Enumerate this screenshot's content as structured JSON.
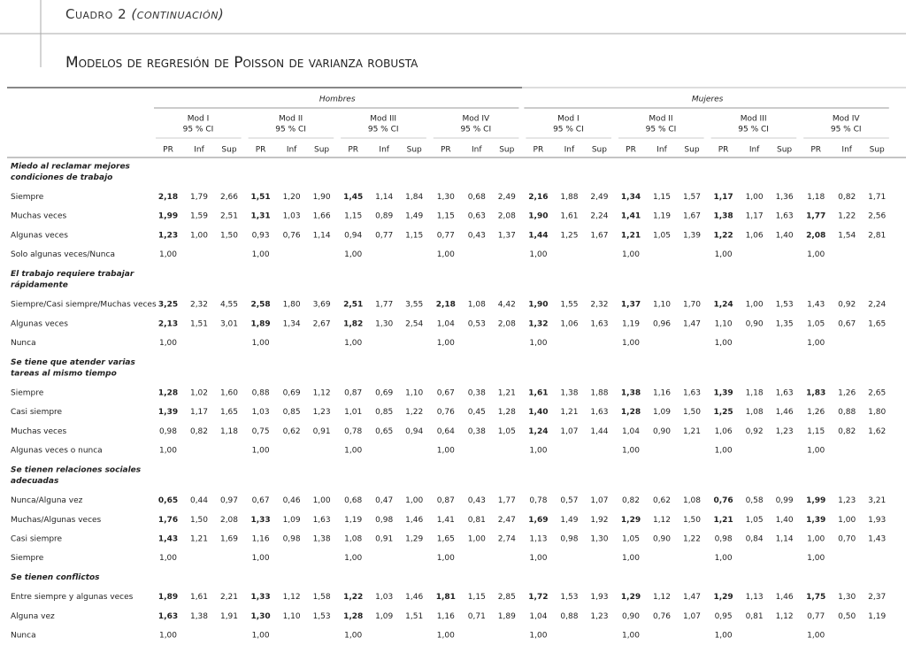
{
  "header": {
    "title": "Cuadro 2",
    "title_note": "(continuación)",
    "subtitle": "Modelos de regresión de Poisson de varianza robusta"
  },
  "table": {
    "groups": [
      "Hombres",
      "Mujeres"
    ],
    "models": [
      {
        "name": "Mod I",
        "ci": "95 % CI"
      },
      {
        "name": "Mod II",
        "ci": "95 % CI"
      },
      {
        "name": "Mod III",
        "ci": "95 % CI"
      },
      {
        "name": "Mod IV",
        "ci": "95 % CI"
      }
    ],
    "subheads": [
      "PR",
      "Inf",
      "Sup"
    ],
    "sections": [
      {
        "heading": [
          "Miedo al reclamar mejores",
          "condiciones de trabajo"
        ],
        "rows": [
          {
            "label": "Siempre",
            "cells": [
              "2,18",
              "1,79",
              "2,66",
              "1,51",
              "1,20",
              "1,90",
              "1,45",
              "1,14",
              "1,84",
              "1,30",
              "0,68",
              "2,49",
              "2,16",
              "1,88",
              "2,49",
              "1,34",
              "1,15",
              "1,57",
              "1,17",
              "1,00",
              "1,36",
              "1,18",
              "0,82",
              "1,71"
            ],
            "bold": [
              0,
              3,
              6,
              12,
              15,
              18
            ]
          },
          {
            "label": "Muchas veces",
            "cells": [
              "1,99",
              "1,59",
              "2,51",
              "1,31",
              "1,03",
              "1,66",
              "1,15",
              "0,89",
              "1,49",
              "1,15",
              "0,63",
              "2,08",
              "1,90",
              "1,61",
              "2,24",
              "1,41",
              "1,19",
              "1,67",
              "1,38",
              "1,17",
              "1,63",
              "1,77",
              "1,22",
              "2,56"
            ],
            "bold": [
              0,
              3,
              12,
              15,
              18,
              21
            ]
          },
          {
            "label": "Algunas veces",
            "cells": [
              "1,23",
              "1,00",
              "1,50",
              "0,93",
              "0,76",
              "1,14",
              "0,94",
              "0,77",
              "1,15",
              "0,77",
              "0,43",
              "1,37",
              "1,44",
              "1,25",
              "1,67",
              "1,21",
              "1,05",
              "1,39",
              "1,22",
              "1,06",
              "1,40",
              "2,08",
              "1,54",
              "2,81"
            ],
            "bold": [
              0,
              12,
              15,
              18,
              21
            ]
          },
          {
            "label": "Solo algunas veces/Nunca",
            "cells": [
              "1,00",
              null,
              null,
              "1,00",
              null,
              null,
              "1,00",
              null,
              null,
              "1,00",
              null,
              null,
              "1,00",
              null,
              null,
              "1,00",
              null,
              null,
              "1,00",
              null,
              null,
              "1,00",
              null,
              null
            ],
            "bold": []
          }
        ]
      },
      {
        "heading": [
          "El trabajo requiere trabajar",
          "rápidamente"
        ],
        "rows": [
          {
            "label": "Siempre/Casi siempre/Muchas veces",
            "cells": [
              "3,25",
              "2,32",
              "4,55",
              "2,58",
              "1,80",
              "3,69",
              "2,51",
              "1,77",
              "3,55",
              "2,18",
              "1,08",
              "4,42",
              "1,90",
              "1,55",
              "2,32",
              "1,37",
              "1,10",
              "1,70",
              "1,24",
              "1,00",
              "1,53",
              "1,43",
              "0,92",
              "2,24"
            ],
            "bold": [
              0,
              3,
              6,
              9,
              12,
              15,
              18
            ]
          },
          {
            "label": "Algunas veces",
            "cells": [
              "2,13",
              "1,51",
              "3,01",
              "1,89",
              "1,34",
              "2,67",
              "1,82",
              "1,30",
              "2,54",
              "1,04",
              "0,53",
              "2,08",
              "1,32",
              "1,06",
              "1,63",
              "1,19",
              "0,96",
              "1,47",
              "1,10",
              "0,90",
              "1,35",
              "1,05",
              "0,67",
              "1,65"
            ],
            "bold": [
              0,
              3,
              6,
              12
            ]
          },
          {
            "label": "Nunca",
            "cells": [
              "1,00",
              null,
              null,
              "1,00",
              null,
              null,
              "1,00",
              null,
              null,
              "1,00",
              null,
              null,
              "1,00",
              null,
              null,
              "1,00",
              null,
              null,
              "1,00",
              null,
              null,
              "1,00",
              null,
              null
            ],
            "bold": []
          }
        ]
      },
      {
        "heading": [
          "Se tiene que atender varias",
          "tareas al mismo tiempo"
        ],
        "rows": [
          {
            "label": "Siempre",
            "cells": [
              "1,28",
              "1,02",
              "1,60",
              "0,88",
              "0,69",
              "1,12",
              "0,87",
              "0,69",
              "1,10",
              "0,67",
              "0,38",
              "1,21",
              "1,61",
              "1,38",
              "1,88",
              "1,38",
              "1,16",
              "1,63",
              "1,39",
              "1,18",
              "1,63",
              "1,83",
              "1,26",
              "2,65"
            ],
            "bold": [
              0,
              12,
              15,
              18,
              21
            ]
          },
          {
            "label": "Casi siempre",
            "cells": [
              "1,39",
              "1,17",
              "1,65",
              "1,03",
              "0,85",
              "1,23",
              "1,01",
              "0,85",
              "1,22",
              "0,76",
              "0,45",
              "1,28",
              "1,40",
              "1,21",
              "1,63",
              "1,28",
              "1,09",
              "1,50",
              "1,25",
              "1,08",
              "1,46",
              "1,26",
              "0,88",
              "1,80"
            ],
            "bold": [
              0,
              12,
              15,
              18
            ]
          },
          {
            "label": "Muchas veces",
            "cells": [
              "0,98",
              "0,82",
              "1,18",
              "0,75",
              "0,62",
              "0,91",
              "0,78",
              "0,65",
              "0,94",
              "0,64",
              "0,38",
              "1,05",
              "1,24",
              "1,07",
              "1,44",
              "1,04",
              "0,90",
              "1,21",
              "1,06",
              "0,92",
              "1,23",
              "1,15",
              "0,82",
              "1,62"
            ],
            "bold": [
              12
            ]
          },
          {
            "label": "Algunas veces o nunca",
            "cells": [
              "1,00",
              null,
              null,
              "1,00",
              null,
              null,
              "1,00",
              null,
              null,
              "1,00",
              null,
              null,
              "1,00",
              null,
              null,
              "1,00",
              null,
              null,
              "1,00",
              null,
              null,
              "1,00",
              null,
              null
            ],
            "bold": []
          }
        ]
      },
      {
        "heading": [
          "Se tienen relaciones sociales",
          "adecuadas"
        ],
        "rows": [
          {
            "label": "Nunca/Alguna vez",
            "cells": [
              "0,65",
              "0,44",
              "0,97",
              "0,67",
              "0,46",
              "1,00",
              "0,68",
              "0,47",
              "1,00",
              "0,87",
              "0,43",
              "1,77",
              "0,78",
              "0,57",
              "1,07",
              "0,82",
              "0,62",
              "1,08",
              "0,76",
              "0,58",
              "0,99",
              "1,99",
              "1,23",
              "3,21"
            ],
            "bold": [
              0,
              18,
              21
            ]
          },
          {
            "label": "Muchas/Algunas veces",
            "cells": [
              "1,76",
              "1,50",
              "2,08",
              "1,33",
              "1,09",
              "1,63",
              "1,19",
              "0,98",
              "1,46",
              "1,41",
              "0,81",
              "2,47",
              "1,69",
              "1,49",
              "1,92",
              "1,29",
              "1,12",
              "1,50",
              "1,21",
              "1,05",
              "1,40",
              "1,39",
              "1,00",
              "1,93"
            ],
            "bold": [
              0,
              3,
              12,
              15,
              18,
              21
            ]
          },
          {
            "label": "Casi siempre",
            "cells": [
              "1,43",
              "1,21",
              "1,69",
              "1,16",
              "0,98",
              "1,38",
              "1,08",
              "0,91",
              "1,29",
              "1,65",
              "1,00",
              "2,74",
              "1,13",
              "0,98",
              "1,30",
              "1,05",
              "0,90",
              "1,22",
              "0,98",
              "0,84",
              "1,14",
              "1,00",
              "0,70",
              "1,43"
            ],
            "bold": [
              0
            ]
          },
          {
            "label": "Siempre",
            "cells": [
              "1,00",
              null,
              null,
              "1,00",
              null,
              null,
              "1,00",
              null,
              null,
              "1,00",
              null,
              null,
              "1,00",
              null,
              null,
              "1,00",
              null,
              null,
              "1,00",
              null,
              null,
              "1,00",
              null,
              null
            ],
            "bold": []
          }
        ]
      },
      {
        "heading": [
          "Se tienen conflictos"
        ],
        "rows": [
          {
            "label": "Entre siempre y algunas veces",
            "cells": [
              "1,89",
              "1,61",
              "2,21",
              "1,33",
              "1,12",
              "1,58",
              "1,22",
              "1,03",
              "1,46",
              "1,81",
              "1,15",
              "2,85",
              "1,72",
              "1,53",
              "1,93",
              "1,29",
              "1,12",
              "1,47",
              "1,29",
              "1,13",
              "1,46",
              "1,75",
              "1,30",
              "2,37"
            ],
            "bold": [
              0,
              3,
              6,
              9,
              12,
              15,
              18,
              21
            ]
          },
          {
            "label": "Alguna vez",
            "cells": [
              "1,63",
              "1,38",
              "1,91",
              "1,30",
              "1,10",
              "1,53",
              "1,28",
              "1,09",
              "1,51",
              "1,16",
              "0,71",
              "1,89",
              "1,04",
              "0,88",
              "1,23",
              "0,90",
              "0,76",
              "1,07",
              "0,95",
              "0,81",
              "1,12",
              "0,77",
              "0,50",
              "1,19"
            ],
            "bold": [
              0,
              3,
              6
            ]
          },
          {
            "label": "Nunca",
            "cells": [
              "1,00",
              null,
              null,
              "1,00",
              null,
              null,
              "1,00",
              null,
              null,
              "1,00",
              null,
              null,
              "1,00",
              null,
              null,
              "1,00",
              null,
              null,
              "1,00",
              null,
              null,
              "1,00",
              null,
              null
            ],
            "bold": []
          }
        ]
      }
    ]
  }
}
